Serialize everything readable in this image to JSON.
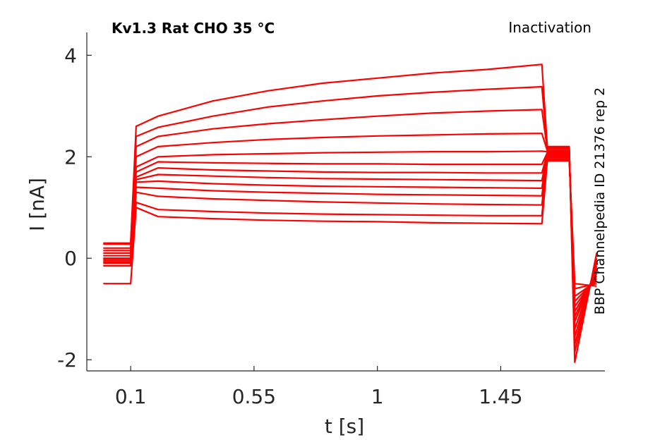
{
  "chart_data": {
    "type": "line",
    "title": "Kv1.3  Rat  CHO  35 °C",
    "corner_label": "Inactivation",
    "side_label": "BBP Channelpedia ID 21376 rep 2",
    "xlabel": "t [s]",
    "ylabel": "I [nA]",
    "xlim": [
      -0.06,
      1.83
    ],
    "ylim": [
      -2.22,
      4.45
    ],
    "xticks": [
      0.1,
      0.55,
      1,
      1.45
    ],
    "xtick_labels": [
      "0.1",
      "0.55",
      "1",
      "1.45"
    ],
    "yticks": [
      -2,
      0,
      2,
      4
    ],
    "ytick_labels": [
      "-2",
      "0",
      "2",
      "4"
    ],
    "grid": false,
    "color": "#ff0000",
    "x": [
      0.0,
      0.1,
      0.12,
      0.2,
      0.4,
      0.6,
      0.8,
      1.0,
      1.2,
      1.4,
      1.6,
      1.62,
      1.7,
      1.72,
      1.8
    ],
    "series": [
      {
        "values": [
          0.3,
          0.3,
          2.6,
          2.8,
          3.1,
          3.3,
          3.45,
          3.55,
          3.65,
          3.72,
          3.82,
          2.2,
          2.2,
          -2.05,
          0.1
        ]
      },
      {
        "values": [
          0.28,
          0.28,
          2.4,
          2.58,
          2.8,
          2.98,
          3.1,
          3.2,
          3.27,
          3.33,
          3.38,
          2.18,
          2.18,
          -1.85,
          0.0
        ]
      },
      {
        "values": [
          0.2,
          0.2,
          2.2,
          2.4,
          2.55,
          2.65,
          2.73,
          2.8,
          2.86,
          2.9,
          2.93,
          2.15,
          2.15,
          -1.7,
          -0.05
        ]
      },
      {
        "values": [
          0.15,
          0.15,
          2.0,
          2.2,
          2.28,
          2.34,
          2.38,
          2.41,
          2.43,
          2.45,
          2.46,
          2.12,
          2.12,
          -1.55,
          -0.1
        ]
      },
      {
        "values": [
          0.1,
          0.1,
          1.8,
          2.0,
          2.04,
          2.06,
          2.08,
          2.09,
          2.1,
          2.1,
          2.11,
          2.1,
          2.1,
          -1.4,
          -0.15
        ]
      },
      {
        "values": [
          0.05,
          0.05,
          1.7,
          1.9,
          1.88,
          1.87,
          1.86,
          1.86,
          1.85,
          1.85,
          1.85,
          2.08,
          2.08,
          -1.25,
          -0.2
        ]
      },
      {
        "values": [
          0.0,
          0.0,
          1.6,
          1.78,
          1.74,
          1.72,
          1.7,
          1.69,
          1.69,
          1.68,
          1.68,
          2.06,
          2.06,
          -1.15,
          -0.25
        ]
      },
      {
        "values": [
          -0.02,
          -0.02,
          1.55,
          1.65,
          1.62,
          1.59,
          1.57,
          1.56,
          1.55,
          1.54,
          1.53,
          2.04,
          2.04,
          -1.05,
          -0.3
        ]
      },
      {
        "values": [
          -0.05,
          -0.05,
          1.5,
          1.52,
          1.47,
          1.44,
          1.42,
          1.41,
          1.4,
          1.39,
          1.38,
          2.02,
          2.02,
          -0.95,
          -0.35
        ]
      },
      {
        "values": [
          -0.08,
          -0.08,
          1.4,
          1.38,
          1.33,
          1.3,
          1.28,
          1.26,
          1.25,
          1.24,
          1.23,
          2.0,
          2.0,
          -0.85,
          -0.4
        ]
      },
      {
        "values": [
          -0.1,
          -0.1,
          1.3,
          1.22,
          1.17,
          1.14,
          1.11,
          1.09,
          1.07,
          1.06,
          1.05,
          1.98,
          1.98,
          -0.75,
          -0.45
        ]
      },
      {
        "values": [
          -0.15,
          -0.15,
          1.1,
          0.96,
          0.92,
          0.89,
          0.87,
          0.86,
          0.85,
          0.84,
          0.84,
          1.95,
          1.95,
          -0.6,
          -0.5
        ]
      },
      {
        "values": [
          -0.5,
          -0.5,
          1.0,
          0.82,
          0.78,
          0.75,
          0.73,
          0.72,
          0.7,
          0.69,
          0.68,
          1.92,
          1.92,
          -0.5,
          -0.55
        ]
      }
    ]
  }
}
